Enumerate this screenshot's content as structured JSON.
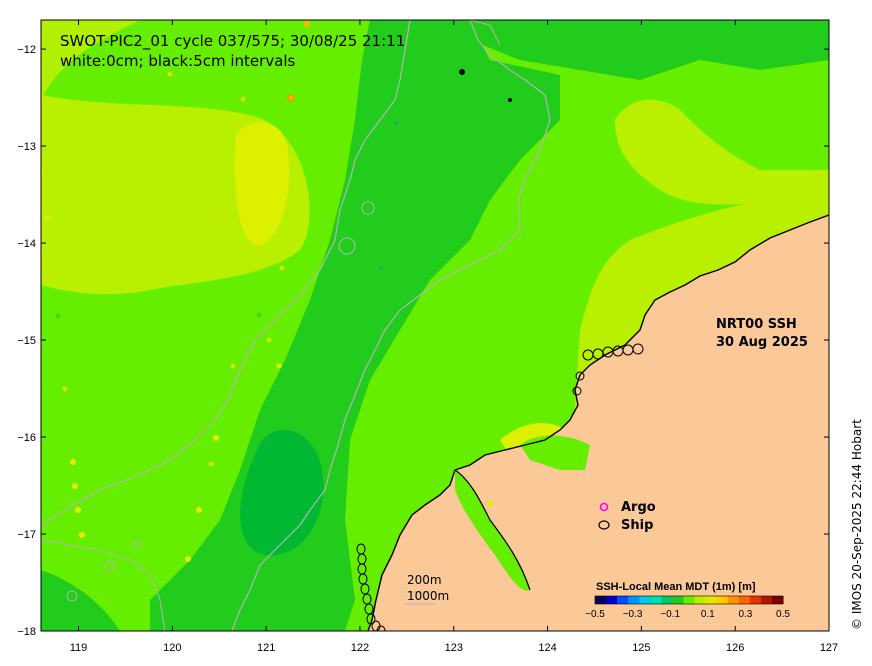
{
  "title": {
    "line1": "SWOT-PIC2_01 cycle 037/575; 30/08/25 21:11",
    "line2": "white:0cm; black:5cm intervals"
  },
  "product": {
    "line1": "NRT00 SSH",
    "line2": "30 Aug 2025"
  },
  "legend": {
    "argo": "Argo",
    "ship": "Ship",
    "argo_color": "#ff00ff",
    "ship_color": "#000000"
  },
  "depth_legend": {
    "shallow": "200m",
    "deep": "1000m"
  },
  "colorbar": {
    "title": "SSH-Local Mean MDT (1m) [m]",
    "ticks": [
      "−0.5",
      "−0.3",
      "−0.1",
      "0.1",
      "0.3",
      "0.5"
    ],
    "values": [
      -0.5,
      -0.3,
      -0.1,
      0.1,
      0.3,
      0.5
    ]
  },
  "axes": {
    "x_ticks": [
      "119",
      "120",
      "121",
      "122",
      "123",
      "124",
      "125",
      "126",
      "127"
    ],
    "x_values": [
      119,
      120,
      121,
      122,
      123,
      124,
      125,
      126,
      127
    ],
    "y_ticks": [
      "−12",
      "−13",
      "−14",
      "−15",
      "−16",
      "−17",
      "−18"
    ],
    "y_values": [
      -12,
      -13,
      -14,
      -15,
      -16,
      -17,
      -18
    ],
    "lon_range": [
      118.6,
      127.0
    ],
    "lat_range": [
      -11.7,
      -18.0
    ]
  },
  "credit": "© IMOS 20-Sep-2025 22:44 Hobart",
  "colors": {
    "land": "#fbc898",
    "ssh_dark": "#00b832",
    "ssh_mid": "#22cc1c",
    "ssh_green": "#66ee00",
    "ssh_lime": "#b8f000",
    "ssh_yellow": "#dcf000",
    "contour": "#b4b4b4"
  }
}
